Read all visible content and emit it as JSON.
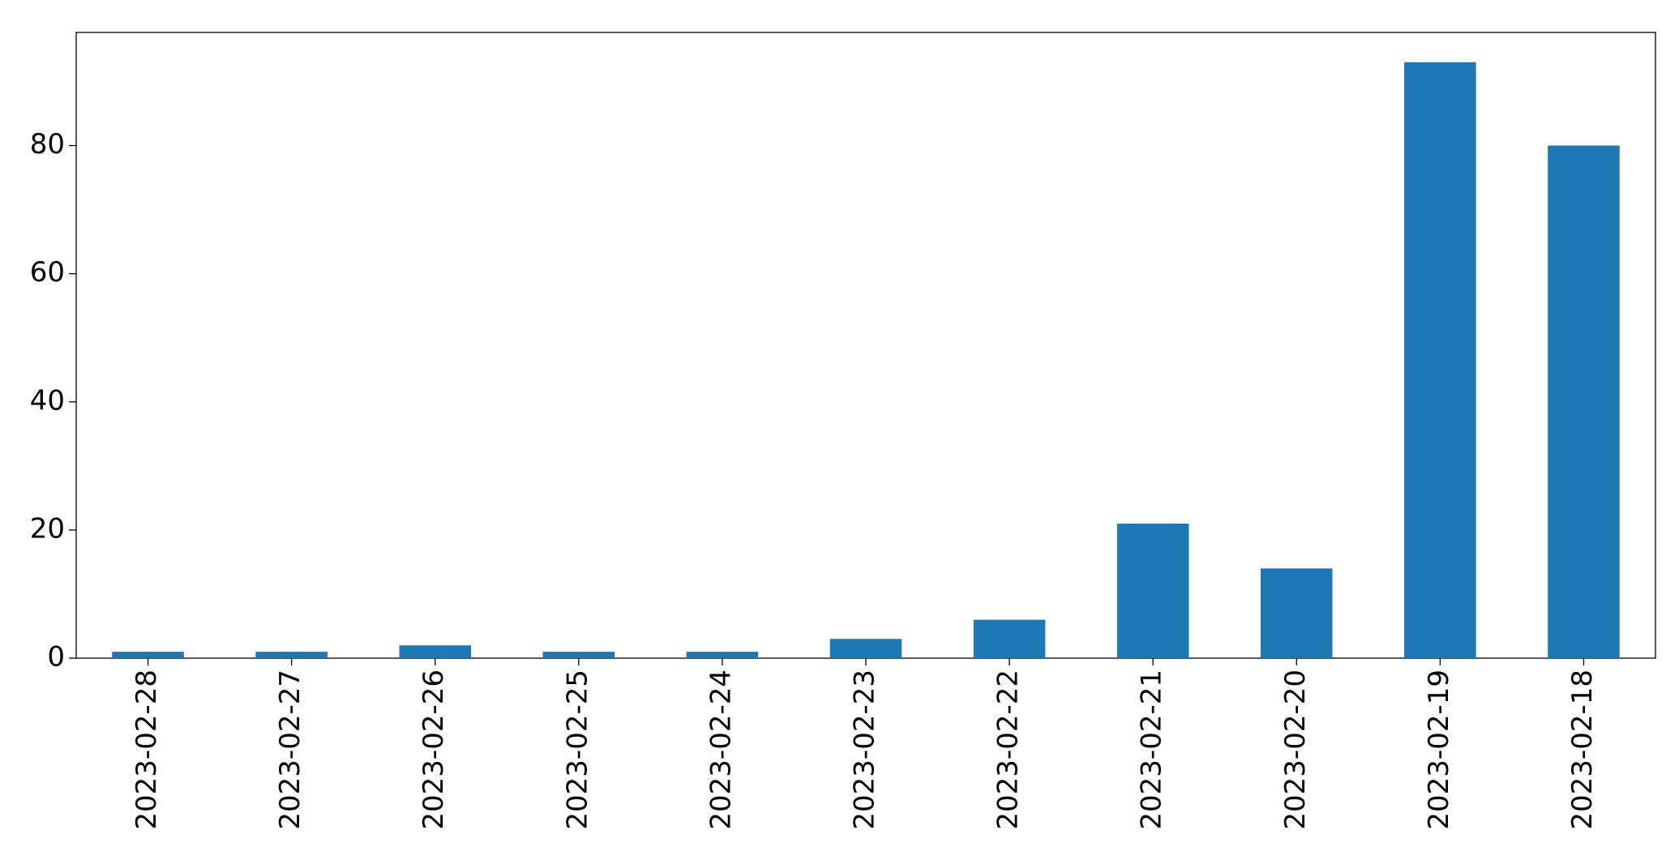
{
  "chart_data": {
    "type": "bar",
    "categories": [
      "2023-02-28",
      "2023-02-27",
      "2023-02-26",
      "2023-02-25",
      "2023-02-24",
      "2023-02-23",
      "2023-02-22",
      "2023-02-21",
      "2023-02-20",
      "2023-02-19",
      "2023-02-18"
    ],
    "values": [
      1,
      1,
      2,
      1,
      1,
      3,
      6,
      21,
      14,
      93,
      80
    ],
    "color": "#1f77b4",
    "ylim": [
      0,
      97.65
    ],
    "yticks": [
      0,
      20,
      40,
      60,
      80
    ],
    "grid": false
  }
}
